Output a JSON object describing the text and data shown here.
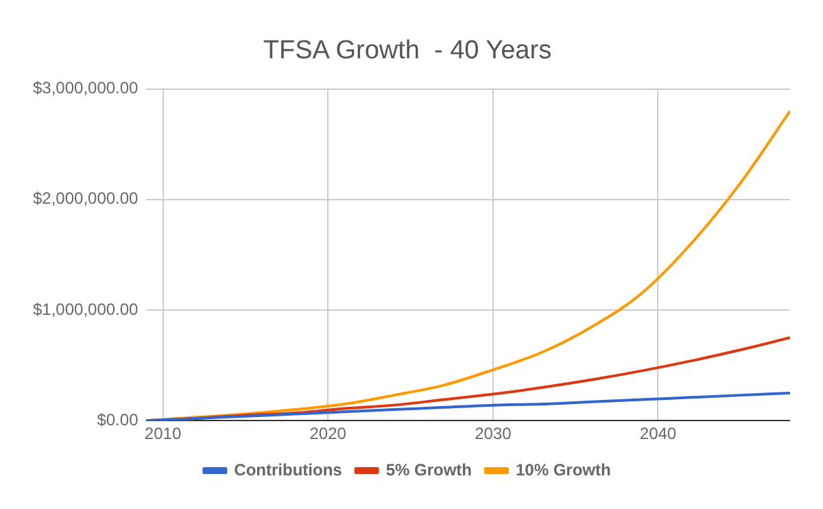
{
  "chart_data": {
    "type": "line",
    "title": "TFSA Growth  - 40 Years",
    "x": [
      2009,
      2012,
      2015,
      2018,
      2021,
      2024,
      2027,
      2030,
      2033,
      2036,
      2039,
      2042,
      2045,
      2048
    ],
    "series": [
      {
        "name": "Contributions",
        "color": "#3366cc",
        "values": [
          0,
          20000,
          40000,
          60000,
          80000,
          100000,
          120000,
          140000,
          150000,
          170000,
          190000,
          210000,
          230000,
          250000
        ]
      },
      {
        "name": "5% Growth",
        "color": "#dc3912",
        "values": [
          0,
          20000,
          50000,
          70000,
          110000,
          140000,
          190000,
          240000,
          300000,
          370000,
          450000,
          540000,
          640000,
          750000
        ]
      },
      {
        "name": "10% Growth",
        "color": "#ff9900",
        "values": [
          0,
          30000,
          60000,
          100000,
          150000,
          230000,
          320000,
          460000,
          620000,
          850000,
          1150000,
          1600000,
          2150000,
          2800000
        ]
      }
    ],
    "xlim": [
      2009,
      2048
    ],
    "xticks": [
      2010,
      2020,
      2030,
      2040
    ],
    "ylim": [
      0,
      3000000
    ],
    "yticks": [
      {
        "value": 0,
        "label": "$0.00"
      },
      {
        "value": 1000000,
        "label": "$1,000,000.00"
      },
      {
        "value": 2000000,
        "label": "$2,000,000.00"
      },
      {
        "value": 3000000,
        "label": "$3,000,000.00"
      }
    ],
    "grid": true,
    "legend": "bottom",
    "marker": "none",
    "line_style": "solid"
  }
}
